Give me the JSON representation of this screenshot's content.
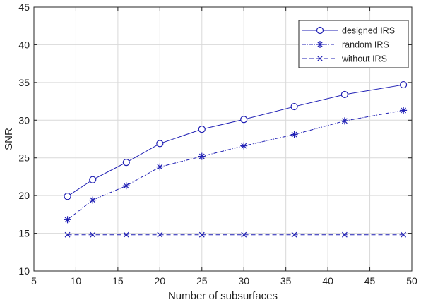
{
  "chart_data": {
    "type": "line",
    "xlabel": "Number of subsurfaces",
    "ylabel": "SNR",
    "xlim": [
      5,
      50
    ],
    "ylim": [
      10,
      45
    ],
    "xticks": [
      5,
      10,
      15,
      20,
      25,
      30,
      35,
      40,
      45,
      50
    ],
    "yticks": [
      10,
      15,
      20,
      25,
      30,
      35,
      40,
      45
    ],
    "grid": true,
    "legend_position": "top-right",
    "x": [
      9,
      12,
      16,
      20,
      25,
      30,
      36,
      42,
      49
    ],
    "series": [
      {
        "name": "designed IRS",
        "values": [
          19.9,
          22.1,
          24.4,
          26.9,
          28.8,
          30.1,
          31.8,
          33.4,
          34.7
        ],
        "line_style": "solid",
        "marker": "circle",
        "color": "#1f1fb4"
      },
      {
        "name": "random IRS",
        "values": [
          16.8,
          19.4,
          21.3,
          23.8,
          25.2,
          26.6,
          28.1,
          29.9,
          31.3
        ],
        "line_style": "dash-dot",
        "marker": "asterisk",
        "color": "#1f1fb4"
      },
      {
        "name": "without IRS",
        "values": [
          14.8,
          14.8,
          14.8,
          14.8,
          14.8,
          14.8,
          14.8,
          14.8,
          14.8
        ],
        "line_style": "dashed",
        "marker": "x",
        "color": "#1f1fb4"
      }
    ]
  }
}
